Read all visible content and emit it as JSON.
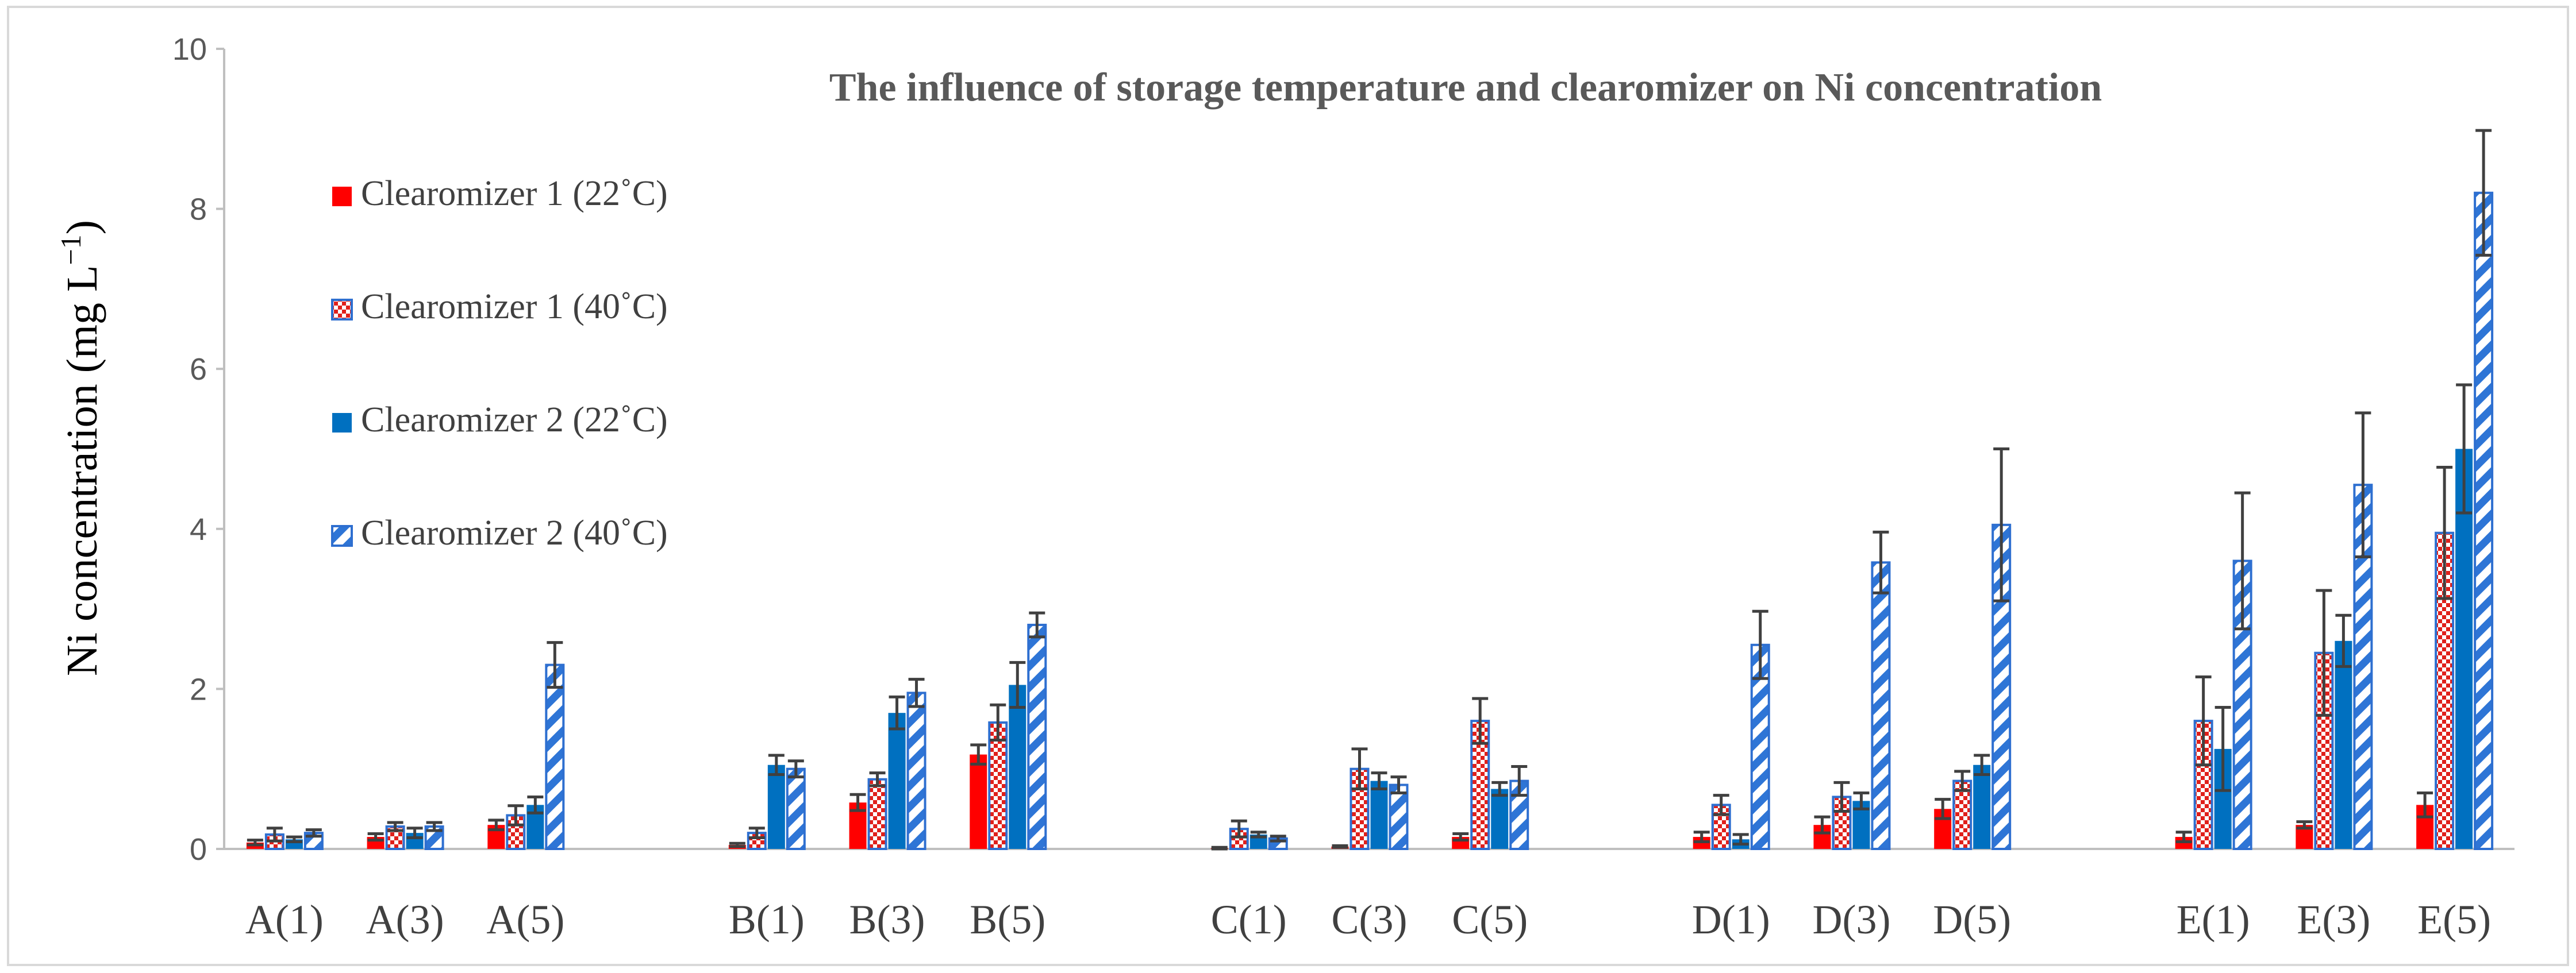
{
  "chart_data": {
    "type": "bar",
    "title": "The influence of storage temperature and clearomizer on Ni concentration",
    "ylabel": "Ni concentration (mg L",
    "ylabel_sup": "−1",
    "ylabel_close": ")",
    "xlabel": "",
    "ylim": [
      0,
      10
    ],
    "yticks": [
      0,
      2,
      4,
      6,
      8,
      10
    ],
    "groups": [
      [
        "A(1)",
        "A(3)",
        "A(5)"
      ],
      [
        "B(1)",
        "B(3)",
        "B(5)"
      ],
      [
        "C(1)",
        "C(3)",
        "C(5)"
      ],
      [
        "D(1)",
        "D(3)",
        "D(5)"
      ],
      [
        "E(1)",
        "E(3)",
        "E(5)"
      ]
    ],
    "categories": [
      "A(1)",
      "A(3)",
      "A(5)",
      "B(1)",
      "B(3)",
      "B(5)",
      "C(1)",
      "C(3)",
      "C(5)",
      "D(1)",
      "D(3)",
      "D(5)",
      "E(1)",
      "E(3)",
      "E(5)"
    ],
    "series": [
      {
        "name": "Clearomizer 1 (22˚C)",
        "color": "#ff0000",
        "pattern": "solid",
        "values": [
          0.08,
          0.15,
          0.3,
          0.05,
          0.58,
          1.18,
          0.01,
          0.03,
          0.15,
          0.15,
          0.3,
          0.5,
          0.15,
          0.3,
          0.55
        ],
        "errors": [
          0.03,
          0.04,
          0.06,
          0.02,
          0.1,
          0.12,
          0.01,
          0.01,
          0.04,
          0.06,
          0.1,
          0.12,
          0.06,
          0.04,
          0.15
        ]
      },
      {
        "name": "Clearomizer 1 (40˚C)",
        "color": "#e0201b",
        "pattern": "checker",
        "values": [
          0.18,
          0.28,
          0.42,
          0.2,
          0.87,
          1.58,
          0.25,
          1.0,
          1.6,
          0.55,
          0.65,
          0.85,
          1.6,
          2.45,
          3.95
        ],
        "errors": [
          0.08,
          0.05,
          0.12,
          0.06,
          0.08,
          0.22,
          0.1,
          0.25,
          0.28,
          0.12,
          0.18,
          0.12,
          0.55,
          0.78,
          0.82
        ]
      },
      {
        "name": "Clearomizer 2 (22˚C)",
        "color": "#0070c0",
        "pattern": "solid",
        "values": [
          0.12,
          0.2,
          0.55,
          1.05,
          1.7,
          2.05,
          0.18,
          0.85,
          0.75,
          0.12,
          0.6,
          1.05,
          1.25,
          2.6,
          5.0
        ],
        "errors": [
          0.03,
          0.06,
          0.1,
          0.12,
          0.2,
          0.28,
          0.03,
          0.1,
          0.08,
          0.06,
          0.1,
          0.12,
          0.52,
          0.32,
          0.8
        ]
      },
      {
        "name": "Clearomizer 2 (40˚C)",
        "color": "#2e75d6",
        "pattern": "diagonal",
        "values": [
          0.2,
          0.28,
          2.3,
          1.0,
          1.95,
          2.8,
          0.13,
          0.8,
          0.85,
          2.55,
          3.58,
          4.05,
          3.6,
          4.55,
          8.2
        ],
        "errors": [
          0.04,
          0.05,
          0.28,
          0.1,
          0.17,
          0.15,
          0.03,
          0.1,
          0.18,
          0.42,
          0.38,
          0.95,
          0.85,
          0.9,
          0.78
        ]
      }
    ],
    "grid": false,
    "legend_position": "top-left"
  }
}
